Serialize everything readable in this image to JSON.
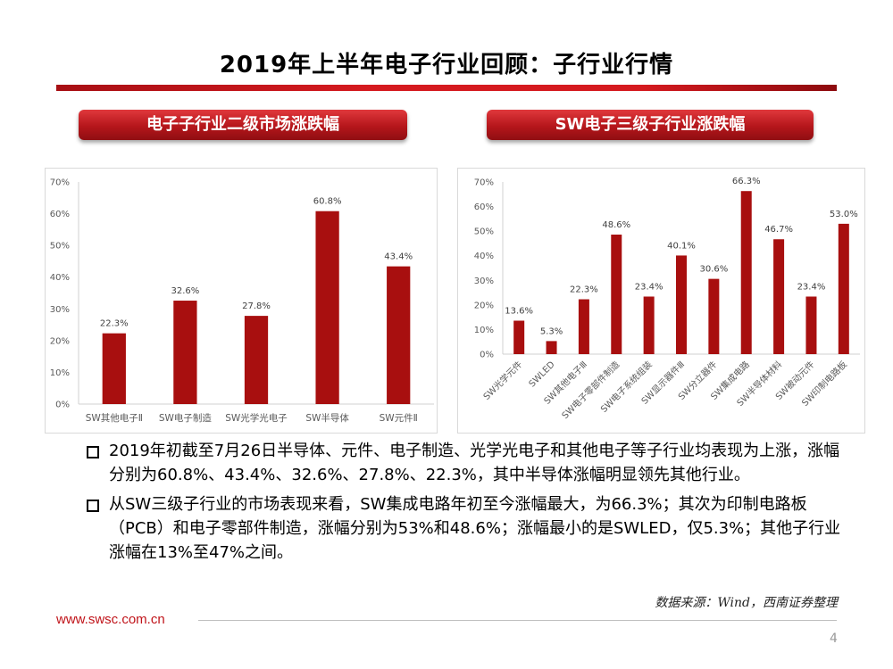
{
  "page": {
    "title": "2019年上半年电子行业回顾：子行业行情",
    "page_number": "4",
    "footer_url": "www.swsc.com.cn",
    "source": "数据来源：Wind，西南证券整理",
    "accent": "#c0141a",
    "bar_color": "#a80f0f"
  },
  "panels": {
    "left_title": "电子子行业二级市场涨跌幅",
    "right_title": "SW电子三级子行业涨跌幅"
  },
  "chart_data": [
    {
      "type": "bar",
      "title": "电子子行业二级市场涨跌幅",
      "categories": [
        "SW其他电子Ⅱ",
        "SW电子制造",
        "SW光学光电子",
        "SW半导体",
        "SW元件Ⅱ"
      ],
      "values": [
        22.3,
        32.6,
        27.8,
        60.8,
        43.4
      ],
      "value_labels": [
        "22.3%",
        "32.6%",
        "27.8%",
        "60.8%",
        "43.4%"
      ],
      "ylim": [
        0,
        70
      ],
      "yticks": [
        "0%",
        "10%",
        "20%",
        "30%",
        "40%",
        "50%",
        "60%",
        "70%"
      ],
      "grid": false
    },
    {
      "type": "bar",
      "title": "SW电子三级子行业涨跌幅",
      "categories": [
        "SW光学元件",
        "SWLED",
        "SW其他电子Ⅲ",
        "SW电子零部件制造",
        "SW电子系统组装",
        "SW显示器件Ⅲ",
        "SW分立器件",
        "SW集成电路",
        "SW半导体材料",
        "SW被动元件",
        "SW印制电路板"
      ],
      "values": [
        13.6,
        5.3,
        22.3,
        48.6,
        23.4,
        40.1,
        30.6,
        66.3,
        46.7,
        23.4,
        53.0
      ],
      "value_labels": [
        "13.6%",
        "5.3%",
        "22.3%",
        "48.6%",
        "23.4%",
        "40.1%",
        "30.6%",
        "66.3%",
        "46.7%",
        "23.4%",
        "53.0%"
      ],
      "ylim": [
        0,
        70
      ],
      "yticks": [
        "0%",
        "10%",
        "20%",
        "30%",
        "40%",
        "50%",
        "60%",
        "70%"
      ],
      "grid": false
    }
  ],
  "bullets": [
    "2019年初截至7月26日半导体、元件、电子制造、光学光电子和其他电子等子行业均表现为上涨，涨幅分别为60.8%、43.4%、32.6%、27.8%、22.3%，其中半导体涨幅明显领先其他行业。",
    "从SW三级子行业的市场表现来看，SW集成电路年初至今涨幅最大，为66.3%；其次为印制电路板（PCB）和电子零部件制造，涨幅分别为53%和48.6%；涨幅最小的是SWLED，仅5.3%；其他子行业涨幅在13%至47%之间。"
  ]
}
